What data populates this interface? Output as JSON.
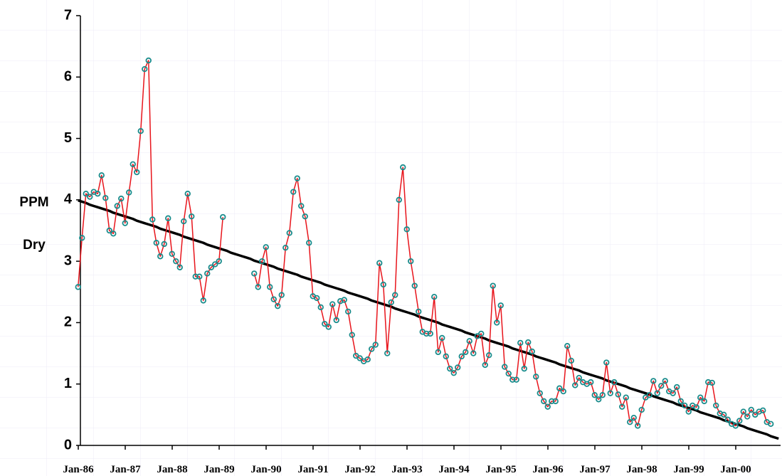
{
  "chart_data": {
    "type": "line",
    "ylabel": [
      "PPM",
      "Dry"
    ],
    "ylim": [
      0,
      7
    ],
    "yticks": [
      0,
      1,
      2,
      3,
      4,
      5,
      6,
      7
    ],
    "categories": [
      "Jan-86",
      null,
      null,
      null,
      null,
      null,
      null,
      null,
      null,
      null,
      null,
      null,
      "Jan-87",
      null,
      null,
      null,
      null,
      null,
      null,
      null,
      null,
      null,
      null,
      null,
      "Jan-88",
      null,
      null,
      null,
      null,
      null,
      null,
      null,
      null,
      null,
      null,
      null,
      "Jan-89",
      null,
      null,
      null,
      null,
      null,
      null,
      null,
      null,
      null,
      null,
      null,
      "Jan-90",
      null,
      null,
      null,
      null,
      null,
      null,
      null,
      null,
      null,
      null,
      null,
      "Jan-91",
      null,
      null,
      null,
      null,
      null,
      null,
      null,
      null,
      null,
      null,
      null,
      "Jan-92",
      null,
      null,
      null,
      null,
      null,
      null,
      null,
      null,
      null,
      null,
      null,
      "Jan-93",
      null,
      null,
      null,
      null,
      null,
      null,
      null,
      null,
      null,
      null,
      null,
      "Jan-94",
      null,
      null,
      null,
      null,
      null,
      null,
      null,
      null,
      null,
      null,
      null,
      "Jan-95",
      null,
      null,
      null,
      null,
      null,
      null,
      null,
      null,
      null,
      null,
      null,
      "Jan-96",
      null,
      null,
      null,
      null,
      null,
      null,
      null,
      null,
      null,
      null,
      null,
      "Jan-97",
      null,
      null,
      null,
      null,
      null,
      null,
      null,
      null,
      null,
      null,
      null,
      "Jan-98",
      null,
      null,
      null,
      null,
      null,
      null,
      null,
      null,
      null,
      null,
      null,
      "Jan-99",
      null,
      null,
      null,
      null,
      null,
      null,
      null,
      null,
      null,
      null,
      null,
      "Jan-00",
      null,
      null,
      null,
      null,
      null,
      null,
      null,
      null,
      null,
      null,
      null
    ],
    "series": [
      {
        "color": "#e8141b",
        "marker_color": "#1b8c8c",
        "values": [
          2.58,
          3.38,
          4.1,
          4.05,
          4.13,
          4.1,
          4.4,
          4.03,
          3.5,
          3.45,
          3.9,
          4.02,
          3.62,
          4.12,
          4.58,
          4.45,
          5.12,
          6.13,
          6.27,
          3.68,
          3.3,
          3.08,
          3.28,
          3.7,
          3.12,
          3.0,
          2.9,
          3.65,
          4.1,
          3.73,
          2.75,
          2.75,
          2.36,
          2.8,
          2.9,
          2.95,
          3.0,
          3.72,
          null,
          null,
          null,
          null,
          null,
          null,
          null,
          2.8,
          2.58,
          3.0,
          3.23,
          2.58,
          2.38,
          2.27,
          2.45,
          3.22,
          3.46,
          4.13,
          4.35,
          3.9,
          3.73,
          3.3,
          2.43,
          2.4,
          2.25,
          1.98,
          1.93,
          2.3,
          2.04,
          2.35,
          2.37,
          2.18,
          1.8,
          1.46,
          1.42,
          1.37,
          1.4,
          1.57,
          1.64,
          2.97,
          2.62,
          1.5,
          2.33,
          2.45,
          4.0,
          4.53,
          3.52,
          3.0,
          2.6,
          2.18,
          1.85,
          1.82,
          1.82,
          2.42,
          1.52,
          1.75,
          1.45,
          1.25,
          1.18,
          1.27,
          1.45,
          1.52,
          1.7,
          1.5,
          1.78,
          1.82,
          1.31,
          1.47,
          2.6,
          2.0,
          2.28,
          1.28,
          1.17,
          1.07,
          1.07,
          1.67,
          1.25,
          1.68,
          1.53,
          1.12,
          0.85,
          0.72,
          0.63,
          0.72,
          0.72,
          0.93,
          0.88,
          1.62,
          1.38,
          0.98,
          1.1,
          1.03,
          1.0,
          1.03,
          0.82,
          0.75,
          0.82,
          1.35,
          0.85,
          1.03,
          0.83,
          0.63,
          0.78,
          0.38,
          0.45,
          0.32,
          0.58,
          0.78,
          0.82,
          1.05,
          0.85,
          0.97,
          1.05,
          0.88,
          0.85,
          0.95,
          0.72,
          0.65,
          0.55,
          0.65,
          0.62,
          0.78,
          0.72,
          1.03,
          1.02,
          0.65,
          0.52,
          0.5,
          0.42,
          0.35,
          0.32,
          0.4,
          0.55,
          0.47,
          0.58,
          0.5,
          0.55,
          0.57,
          0.38,
          0.35,
          null,
          null
        ]
      },
      {
        "color": "#000000",
        "values": [
          3.99,
          3.97,
          3.95,
          3.92,
          3.9,
          3.88,
          3.86,
          3.84,
          3.82,
          3.79,
          3.77,
          3.75,
          3.73,
          3.71,
          3.69,
          3.66,
          3.64,
          3.62,
          3.6,
          3.58,
          3.56,
          3.53,
          3.51,
          3.49,
          3.47,
          3.45,
          3.43,
          3.4,
          3.38,
          3.36,
          3.34,
          3.32,
          3.3,
          3.27,
          3.25,
          3.23,
          3.21,
          3.19,
          3.17,
          3.14,
          3.12,
          3.1,
          3.08,
          3.06,
          3.04,
          3.01,
          2.99,
          2.97,
          2.95,
          2.93,
          2.91,
          2.88,
          2.86,
          2.84,
          2.82,
          2.8,
          2.78,
          2.75,
          2.73,
          2.71,
          2.69,
          2.67,
          2.65,
          2.62,
          2.6,
          2.58,
          2.56,
          2.54,
          2.52,
          2.49,
          2.47,
          2.45,
          2.43,
          2.41,
          2.39,
          2.36,
          2.34,
          2.32,
          2.3,
          2.28,
          2.26,
          2.23,
          2.21,
          2.19,
          2.17,
          2.15,
          2.13,
          2.1,
          2.08,
          2.06,
          2.04,
          2.02,
          2.0,
          1.97,
          1.95,
          1.93,
          1.91,
          1.89,
          1.87,
          1.84,
          1.82,
          1.8,
          1.78,
          1.76,
          1.74,
          1.71,
          1.69,
          1.67,
          1.65,
          1.63,
          1.61,
          1.58,
          1.56,
          1.54,
          1.52,
          1.5,
          1.48,
          1.45,
          1.43,
          1.41,
          1.39,
          1.37,
          1.35,
          1.32,
          1.3,
          1.28,
          1.26,
          1.24,
          1.22,
          1.19,
          1.17,
          1.15,
          1.13,
          1.11,
          1.09,
          1.06,
          1.04,
          1.02,
          1.0,
          0.98,
          0.96,
          0.93,
          0.91,
          0.89,
          0.87,
          0.85,
          0.83,
          0.8,
          0.78,
          0.76,
          0.74,
          0.72,
          0.7,
          0.67,
          0.65,
          0.63,
          0.61,
          0.59,
          0.57,
          0.54,
          0.52,
          0.5,
          0.48,
          0.46,
          0.44,
          0.41,
          0.39,
          0.37,
          0.35,
          0.33,
          0.31,
          0.28,
          0.26,
          0.24,
          0.22,
          0.2,
          0.18,
          0.15,
          0.13,
          0.11
        ]
      }
    ]
  }
}
